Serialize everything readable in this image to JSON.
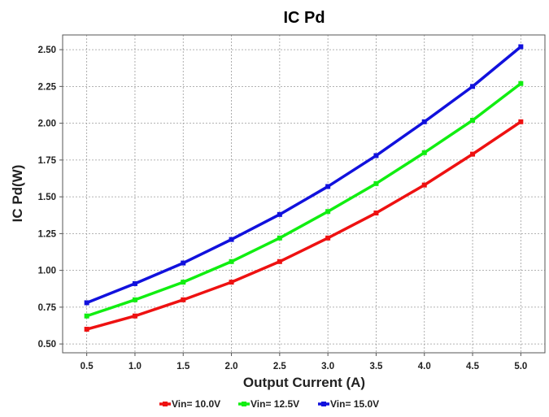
{
  "chart_data": {
    "type": "line",
    "title": "IC Pd",
    "xlabel": "Output Current (A)",
    "ylabel": "IC Pd(W)",
    "x": [
      0.5,
      1.0,
      1.5,
      2.0,
      2.5,
      3.0,
      3.5,
      4.0,
      4.5,
      5.0
    ],
    "x_tick_labels": [
      "0.5",
      "1.0",
      "1.5",
      "2.0",
      "2.5",
      "3.0",
      "3.5",
      "4.0",
      "4.5",
      "5.0"
    ],
    "xlim": [
      0.25,
      5.25
    ],
    "ylim": [
      0.44,
      2.6
    ],
    "y_ticks": [
      0.5,
      0.75,
      1.0,
      1.25,
      1.5,
      1.75,
      2.0,
      2.25,
      2.5
    ],
    "y_tick_labels": [
      "0.50",
      "0.75",
      "1.00",
      "1.25",
      "1.50",
      "1.75",
      "2.00",
      "2.25",
      "2.50"
    ],
    "grid": true,
    "legend_position": "bottom-center",
    "series": [
      {
        "name": "Vin= 10.0V",
        "color": "#ee1111",
        "values": [
          0.6,
          0.69,
          0.8,
          0.92,
          1.06,
          1.22,
          1.39,
          1.58,
          1.79,
          2.01
        ]
      },
      {
        "name": "Vin= 12.5V",
        "color": "#11ee11",
        "values": [
          0.69,
          0.8,
          0.92,
          1.06,
          1.22,
          1.4,
          1.59,
          1.8,
          2.02,
          2.27
        ]
      },
      {
        "name": "Vin= 15.0V",
        "color": "#1111dd",
        "values": [
          0.78,
          0.91,
          1.05,
          1.21,
          1.38,
          1.57,
          1.78,
          2.01,
          2.25,
          2.52
        ]
      }
    ]
  }
}
